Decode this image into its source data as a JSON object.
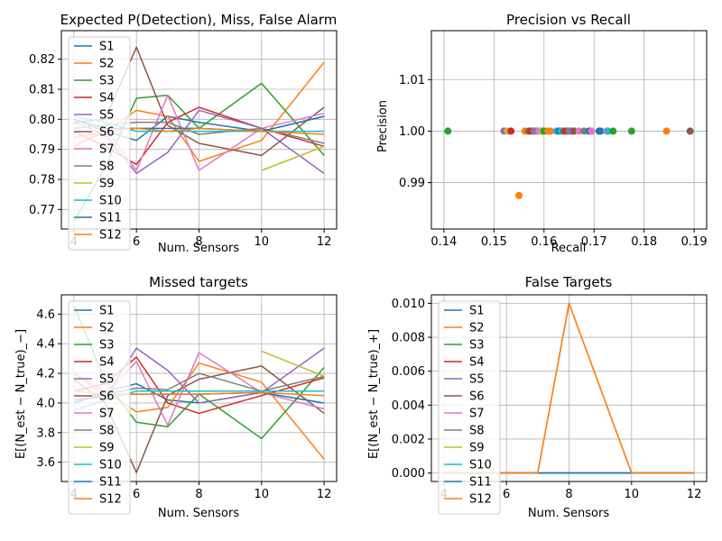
{
  "colors": [
    "#1f77b4",
    "#ff7f0e",
    "#2ca02c",
    "#d62728",
    "#9467bd",
    "#8c564b",
    "#e377c2",
    "#7f7f7f",
    "#bcbd22",
    "#17becf",
    "#1f77b4",
    "#ff7f0e"
  ],
  "chart_data": [
    {
      "type": "line",
      "title": "Expected P(Detection), Miss, False Alarm",
      "xlabel": "Num. Sensors",
      "ylabel": "",
      "xlim": [
        3.6,
        12.4
      ],
      "ylim": [
        0.7635,
        0.8295
      ],
      "xticks": [
        4,
        6,
        8,
        10,
        12
      ],
      "yticks": [
        0.77,
        0.78,
        0.79,
        0.8,
        0.81,
        0.82
      ],
      "ytick_labels": [
        "0.77",
        "0.78",
        "0.79",
        "0.80",
        "0.81",
        "0.82"
      ],
      "grid": true,
      "legend_loc": "lower-left",
      "series": [
        {
          "name": "S1",
          "x": [
            4,
            5,
            6,
            7,
            8,
            10,
            12
          ],
          "y": [
            0.8,
            0.796,
            0.793,
            0.801,
            0.799,
            0.796,
            0.801
          ]
        },
        {
          "name": "S2",
          "x": [
            4,
            5,
            6,
            7,
            8,
            10,
            12
          ],
          "y": [
            0.791,
            0.796,
            0.803,
            0.801,
            0.786,
            0.793,
            0.819
          ]
        },
        {
          "name": "S3",
          "x": [
            4,
            5,
            6,
            7,
            8,
            10,
            12
          ],
          "y": [
            0.766,
            0.784,
            0.807,
            0.808,
            0.797,
            0.812,
            0.788
          ]
        },
        {
          "name": "S4",
          "x": [
            4,
            5,
            6,
            7,
            8,
            10,
            12
          ],
          "y": [
            0.796,
            0.791,
            0.785,
            0.799,
            0.804,
            0.797,
            0.791
          ]
        },
        {
          "name": "S5",
          "x": [
            4,
            5,
            6,
            7,
            8,
            10,
            12
          ],
          "y": [
            0.799,
            0.795,
            0.782,
            0.789,
            0.803,
            0.797,
            0.782
          ]
        },
        {
          "name": "S6",
          "x": [
            4,
            5,
            6,
            7,
            8,
            10,
            12
          ],
          "y": [
            0.799,
            0.8,
            0.824,
            0.798,
            0.792,
            0.788,
            0.804
          ]
        },
        {
          "name": "S7",
          "x": [
            4,
            5,
            6,
            7,
            8,
            10,
            12
          ],
          "y": [
            0.791,
            0.797,
            0.783,
            0.808,
            0.783,
            0.797,
            0.802
          ]
        },
        {
          "name": "S8",
          "x": [
            4,
            5,
            6,
            7,
            8,
            10,
            12
          ],
          "y": [
            0.797,
            0.798,
            0.799,
            0.799,
            0.795,
            0.797,
            0.792
          ]
        },
        {
          "name": "S9",
          "x": [
            10,
            12
          ],
          "y": [
            0.783,
            0.791
          ]
        },
        {
          "name": "S10",
          "x": [
            4,
            5,
            6,
            7,
            8,
            10,
            12
          ],
          "y": [
            0.801,
            0.799,
            0.796,
            0.796,
            0.796,
            0.796,
            0.796
          ]
        },
        {
          "name": "S11",
          "x": [
            4,
            5,
            6,
            7,
            8,
            10,
            12
          ],
          "y": [
            0.8,
            0.797,
            0.797,
            0.797,
            0.797,
            0.796,
            0.801
          ]
        },
        {
          "name": "S12",
          "x": [
            4,
            5,
            6,
            7,
            8,
            10,
            12
          ],
          "y": [
            0.794,
            0.796,
            0.797,
            0.796,
            0.797,
            0.796,
            0.795
          ]
        }
      ]
    },
    {
      "type": "scatter",
      "title": "Precision vs Recall",
      "xlabel": "Recall",
      "ylabel": "Precision",
      "xlim": [
        0.1375,
        0.1925
      ],
      "ylim": [
        0.981,
        1.0195
      ],
      "xticks": [
        0.14,
        0.15,
        0.16,
        0.17,
        0.18,
        0.19
      ],
      "xtick_labels": [
        "0.14",
        "0.15",
        "0.16",
        "0.17",
        "0.18",
        "0.19"
      ],
      "yticks": [
        0.99,
        1.0,
        1.01
      ],
      "ytick_labels": [
        "0.99",
        "1.00",
        "1.01"
      ],
      "grid": true,
      "points": [
        {
          "series": 2,
          "x": 0.1408,
          "y": 1.0
        },
        {
          "series": 4,
          "x": 0.152,
          "y": 1.0
        },
        {
          "series": 8,
          "x": 0.1527,
          "y": 1.0
        },
        {
          "series": 3,
          "x": 0.1534,
          "y": 1.0
        },
        {
          "series": 1,
          "x": 0.155,
          "y": 0.9875
        },
        {
          "series": 1,
          "x": 0.1562,
          "y": 1.0
        },
        {
          "series": 5,
          "x": 0.157,
          "y": 1.0
        },
        {
          "series": 3,
          "x": 0.1575,
          "y": 1.0
        },
        {
          "series": 7,
          "x": 0.158,
          "y": 1.0
        },
        {
          "series": 4,
          "x": 0.1585,
          "y": 1.0
        },
        {
          "series": 6,
          "x": 0.159,
          "y": 1.0
        },
        {
          "series": 8,
          "x": 0.1596,
          "y": 1.0
        },
        {
          "series": 2,
          "x": 0.16,
          "y": 1.0
        },
        {
          "series": 1,
          "x": 0.1608,
          "y": 1.0
        },
        {
          "series": 1,
          "x": 0.1613,
          "y": 1.0
        },
        {
          "series": 9,
          "x": 0.1625,
          "y": 1.0
        },
        {
          "series": 10,
          "x": 0.163,
          "y": 1.0
        },
        {
          "series": 9,
          "x": 0.1635,
          "y": 1.0
        },
        {
          "series": 5,
          "x": 0.164,
          "y": 1.0
        },
        {
          "series": 3,
          "x": 0.1645,
          "y": 1.0
        },
        {
          "series": 7,
          "x": 0.165,
          "y": 1.0
        },
        {
          "series": 4,
          "x": 0.1655,
          "y": 1.0
        },
        {
          "series": 5,
          "x": 0.166,
          "y": 1.0
        },
        {
          "series": 6,
          "x": 0.167,
          "y": 1.0
        },
        {
          "series": 7,
          "x": 0.168,
          "y": 1.0
        },
        {
          "series": 0,
          "x": 0.169,
          "y": 1.0
        },
        {
          "series": 6,
          "x": 0.1695,
          "y": 1.0
        },
        {
          "series": 10,
          "x": 0.171,
          "y": 1.0
        },
        {
          "series": 0,
          "x": 0.1713,
          "y": 1.0
        },
        {
          "series": 6,
          "x": 0.1725,
          "y": 1.0
        },
        {
          "series": 9,
          "x": 0.1728,
          "y": 1.0
        },
        {
          "series": 2,
          "x": 0.1738,
          "y": 1.0
        },
        {
          "series": 2,
          "x": 0.1775,
          "y": 1.0
        },
        {
          "series": 1,
          "x": 0.1845,
          "y": 1.0
        },
        {
          "series": 5,
          "x": 0.1892,
          "y": 1.0
        }
      ]
    },
    {
      "type": "line",
      "title": "Missed targets",
      "xlabel": "Num. Sensors",
      "ylabel": "E[(N_est − N_true)_−]",
      "xlim": [
        3.6,
        12.4
      ],
      "ylim": [
        3.47,
        4.73
      ],
      "xticks": [
        4,
        6,
        8,
        10,
        12
      ],
      "yticks": [
        3.6,
        3.8,
        4.0,
        4.2,
        4.4,
        4.6
      ],
      "ytick_labels": [
        "3.6",
        "3.8",
        "4.0",
        "4.2",
        "4.4",
        "4.6"
      ],
      "grid": true,
      "legend_loc": "lower-left",
      "series": [
        {
          "name": "S1",
          "x": [
            4,
            5,
            6,
            7,
            8,
            10,
            12
          ],
          "y": [
            4.0,
            4.08,
            4.13,
            4.02,
            4.0,
            4.07,
            4.0
          ]
        },
        {
          "name": "S2",
          "x": [
            4,
            5,
            6,
            7,
            8,
            10,
            12
          ],
          "y": [
            4.2,
            4.08,
            3.94,
            3.97,
            4.27,
            4.14,
            3.62
          ]
        },
        {
          "name": "S3",
          "x": [
            4,
            5,
            6,
            7,
            8,
            10,
            12
          ],
          "y": [
            4.66,
            4.15,
            3.87,
            3.84,
            4.06,
            3.76,
            4.24
          ]
        },
        {
          "name": "S4",
          "x": [
            4,
            5,
            6,
            7,
            8,
            10,
            12
          ],
          "y": [
            4.08,
            4.13,
            4.31,
            4.0,
            3.93,
            4.05,
            4.17
          ]
        },
        {
          "name": "S5",
          "x": [
            4,
            5,
            6,
            7,
            8,
            10,
            12
          ],
          "y": [
            4.02,
            4.04,
            4.37,
            4.22,
            4.0,
            4.07,
            4.37
          ]
        },
        {
          "name": "S6",
          "x": [
            4,
            5,
            6,
            7,
            8,
            10,
            12
          ],
          "y": [
            4.16,
            4.0,
            3.53,
            4.05,
            4.16,
            4.25,
            3.93
          ]
        },
        {
          "name": "S7",
          "x": [
            4,
            5,
            6,
            7,
            8,
            10,
            12
          ],
          "y": [
            4.2,
            4.05,
            4.28,
            3.85,
            4.34,
            4.07,
            3.96
          ]
        },
        {
          "name": "S8",
          "x": [
            4,
            5,
            6,
            7,
            8,
            10,
            12
          ],
          "y": [
            4.02,
            4.06,
            4.1,
            4.09,
            4.2,
            4.08,
            4.18
          ]
        },
        {
          "name": "S9",
          "x": [
            10,
            12
          ],
          "y": [
            4.35,
            4.18
          ]
        },
        {
          "name": "S10",
          "x": [
            4,
            5,
            6,
            7,
            8,
            10,
            12
          ],
          "y": [
            3.95,
            4.02,
            4.08,
            4.08,
            4.08,
            4.08,
            4.08
          ]
        },
        {
          "name": "S11",
          "x": [
            4,
            5,
            6,
            7,
            8,
            10,
            12
          ],
          "y": [
            4.0,
            4.06,
            4.06,
            4.06,
            4.06,
            4.07,
            4.0
          ]
        },
        {
          "name": "S12",
          "x": [
            4,
            5,
            6,
            7,
            8,
            10,
            12
          ],
          "y": [
            4.08,
            4.06,
            4.06,
            4.06,
            4.06,
            4.07,
            4.05
          ]
        }
      ]
    },
    {
      "type": "line",
      "title": "False Targets",
      "xlabel": "Num. Sensors",
      "ylabel": "E[(N_est − N_true)_+]",
      "xlim": [
        3.6,
        12.4
      ],
      "ylim": [
        -0.0005,
        0.0105
      ],
      "xticks": [
        4,
        6,
        8,
        10,
        12
      ],
      "yticks": [
        0.0,
        0.002,
        0.004,
        0.006,
        0.008,
        0.01
      ],
      "ytick_labels": [
        "0.000",
        "0.002",
        "0.004",
        "0.006",
        "0.008",
        "0.010"
      ],
      "grid": true,
      "legend_loc": "lower-left",
      "series": [
        {
          "name": "S1",
          "x": [
            4,
            5,
            6,
            7,
            8,
            10,
            12
          ],
          "y": [
            0,
            0,
            0,
            0,
            0,
            0,
            0
          ]
        },
        {
          "name": "S2",
          "x": [
            4,
            5,
            6,
            7,
            8,
            10,
            12
          ],
          "y": [
            0,
            0,
            0,
            0,
            0.01,
            0,
            0
          ]
        },
        {
          "name": "S3",
          "x": [
            4,
            5,
            6,
            7,
            8,
            10,
            12
          ],
          "y": [
            0,
            0,
            0,
            0,
            0,
            0,
            0
          ]
        },
        {
          "name": "S4",
          "x": [
            4,
            5,
            6,
            7,
            8,
            10,
            12
          ],
          "y": [
            0,
            0,
            0,
            0,
            0,
            0,
            0
          ]
        },
        {
          "name": "S5",
          "x": [
            4,
            5,
            6,
            7,
            8,
            10,
            12
          ],
          "y": [
            0,
            0,
            0,
            0,
            0,
            0,
            0
          ]
        },
        {
          "name": "S6",
          "x": [
            4,
            5,
            6,
            7,
            8,
            10,
            12
          ],
          "y": [
            0,
            0,
            0,
            0,
            0,
            0,
            0
          ]
        },
        {
          "name": "S7",
          "x": [
            4,
            5,
            6,
            7,
            8,
            10,
            12
          ],
          "y": [
            0,
            0,
            0,
            0,
            0,
            0,
            0
          ]
        },
        {
          "name": "S8",
          "x": [
            4,
            5,
            6,
            7,
            8,
            10,
            12
          ],
          "y": [
            0,
            0,
            0,
            0,
            0,
            0,
            0
          ]
        },
        {
          "name": "S9",
          "x": [
            10,
            12
          ],
          "y": [
            0,
            0
          ]
        },
        {
          "name": "S10",
          "x": [
            4,
            5,
            6,
            7,
            8,
            10,
            12
          ],
          "y": [
            0,
            0,
            0,
            0,
            0,
            0,
            0
          ]
        },
        {
          "name": "S11",
          "x": [
            4,
            5,
            6,
            7,
            8,
            10,
            12
          ],
          "y": [
            0,
            0,
            0,
            0,
            0,
            0,
            0
          ]
        },
        {
          "name": "S12",
          "x": [
            4,
            5,
            6,
            7,
            8,
            10,
            12
          ],
          "y": [
            0,
            0,
            0,
            0,
            0.01,
            0,
            0
          ]
        }
      ]
    }
  ]
}
